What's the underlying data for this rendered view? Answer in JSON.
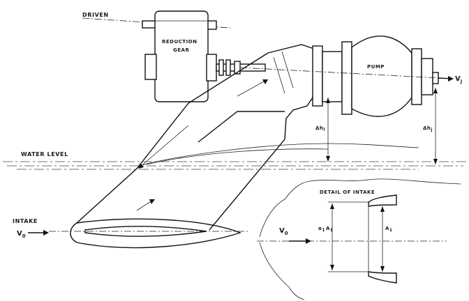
{
  "labels": {
    "driven": "DRIVEN",
    "reduction_gear_1": "REDUCTION",
    "reduction_gear_2": "GEAR",
    "pump": "PUMP",
    "v1": "V",
    "v1_sub": "j",
    "water_level": "WATER LEVEL",
    "intake": "INTAKE",
    "v0": "V",
    "v0_sub": "0",
    "v0_detail": "V",
    "v0_detail_sub": "0",
    "delta_h_left": "Δh",
    "delta_h_left_sub": "l",
    "delta_h_right": "Δh",
    "delta_h_right_sub": "j",
    "detail_of_intake": "DETAIL OF INTAKE",
    "a1_left": "α",
    "a1_left_sub": "1",
    "a1_left_2": "A",
    "a1_left_2_sub": "1",
    "a1_right": "A",
    "a1_right_sub": "1"
  },
  "colors": {
    "ink": "#111111",
    "paper": "#ffffff"
  }
}
